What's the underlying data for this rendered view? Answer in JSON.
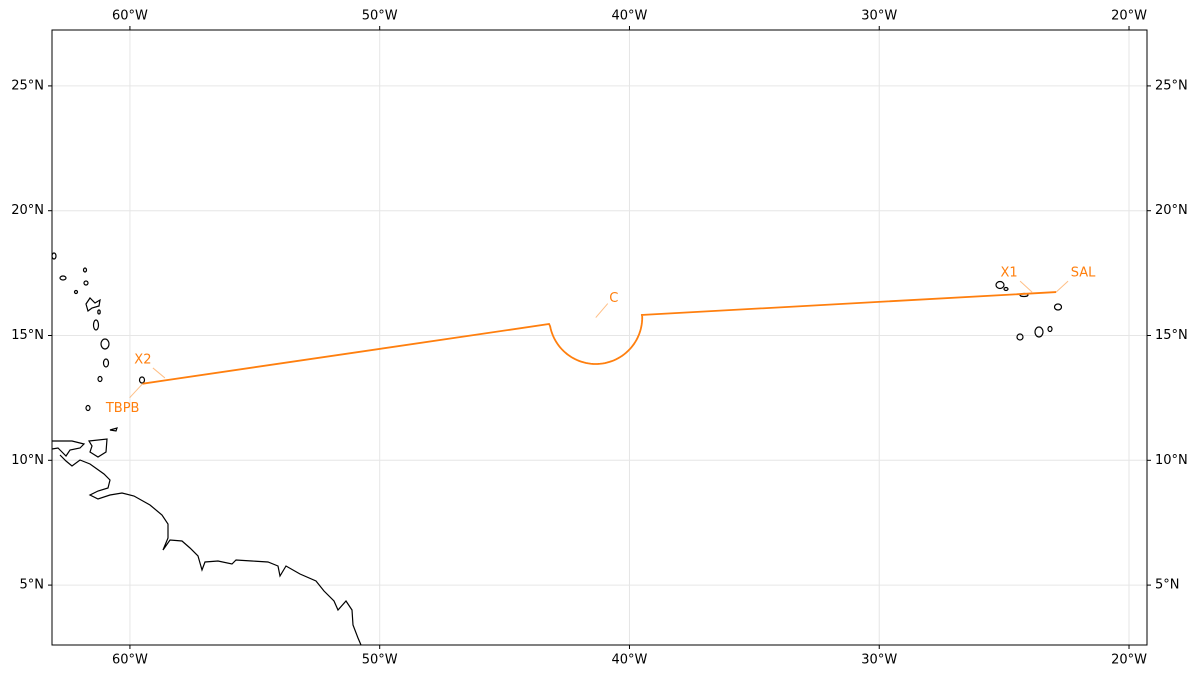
{
  "map": {
    "xlim": [
      -63.12,
      -19.28
    ],
    "ylim": [
      2.6,
      27.24
    ],
    "xticks": [
      {
        "value": -60,
        "label": "60°W"
      },
      {
        "value": -50,
        "label": "50°W"
      },
      {
        "value": -40,
        "label": "40°W"
      },
      {
        "value": -30,
        "label": "30°W"
      },
      {
        "value": -20,
        "label": "20°W"
      }
    ],
    "yticks": [
      {
        "value": 5,
        "label": "5°N"
      },
      {
        "value": 10,
        "label": "10°N"
      },
      {
        "value": 15,
        "label": "15°N"
      },
      {
        "value": 20,
        "label": "20°N"
      },
      {
        "value": 25,
        "label": "25°N"
      }
    ],
    "grid": true,
    "track": {
      "color": "#ff7f0e",
      "lon": [
        -59.49,
        -43.22,
        -39.54,
        -22.92
      ],
      "lat": [
        13.07,
        15.46,
        15.82,
        16.74
      ],
      "circle": {
        "lon": -41.35,
        "lat": 15.72,
        "radius": 1.86
      }
    },
    "waypoints": [
      {
        "name": "TBPB",
        "lon": -59.49,
        "lat": 13.07
      },
      {
        "name": "X2",
        "lon": -58.6,
        "lat": 13.3
      },
      {
        "name": "C",
        "lon": -41.35,
        "lat": 15.72
      },
      {
        "name": "X1",
        "lon": -23.88,
        "lat": 16.74
      },
      {
        "name": "SAL",
        "lon": -22.92,
        "lat": 16.74
      }
    ]
  }
}
